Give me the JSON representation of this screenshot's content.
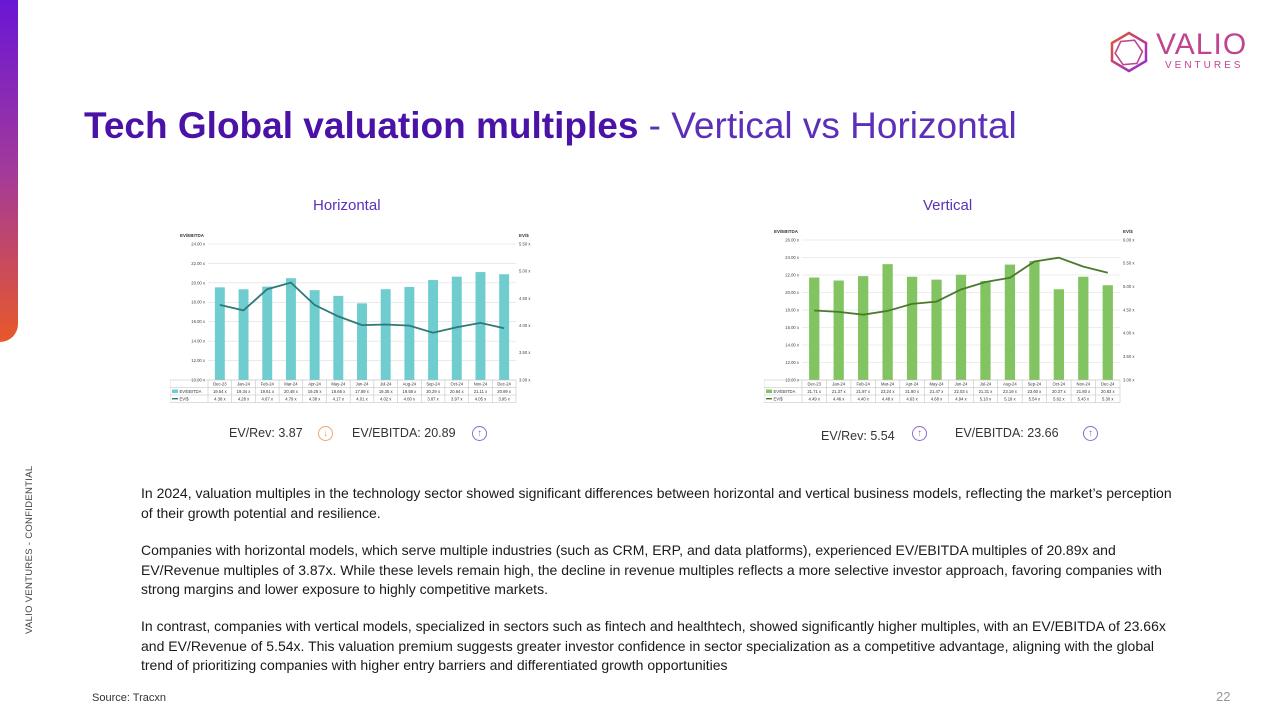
{
  "sidebar": {
    "label": "VALIO VENTURES - CONFIDENTIAL",
    "gradient": [
      "#6a16d6",
      "#e8582a"
    ]
  },
  "logo": {
    "word": "VALIO",
    "sub": "VENTURES",
    "color": "#c2448f"
  },
  "title": {
    "bold": "Tech Global valuation multiples",
    "rest": " - Vertical vs Horizontal"
  },
  "charts": {
    "horizontal": {
      "heading": "Horizontal",
      "metric1": "EV/Rev: 3.87",
      "metric1_trend": "down",
      "metric2": "EV/EBITDA: 20.89",
      "metric2_trend": "up"
    },
    "vertical": {
      "heading": "Vertical",
      "metric1": "EV/Rev: 5.54",
      "metric1_trend": "up",
      "metric2": "EV/EBITDA: 23.66",
      "metric2_trend": "up"
    }
  },
  "chart_data": [
    {
      "type": "bar",
      "name": "Horizontal",
      "categories": [
        "Dec-23",
        "Jan-24",
        "Feb-24",
        "Mar-24",
        "Apr-24",
        "May-24",
        "Jun-24",
        "Jul-24",
        "Aug-24",
        "Sep-24",
        "Oct-24",
        "Nov-24",
        "Dec-24"
      ],
      "ylabel": "EV/EBITDA",
      "y2label": "EV/$",
      "ylim": [
        10,
        24
      ],
      "y2lim": [
        3,
        5.5
      ],
      "yticks": [
        "24.00 x",
        "22.00 x",
        "20.00 x",
        "18.00 x",
        "16.00 x",
        "14.00 x",
        "12.00 x",
        "10.00 x"
      ],
      "y2ticks": [
        "5.50 x",
        "5.00 x",
        "4.50 x",
        "4.00 x",
        "3.50 x",
        "3.00 x"
      ],
      "bar_color": "#6fcdd0",
      "line_color": "#2e7a78",
      "series": [
        {
          "name": "EV/EBITDA",
          "kind": "bar",
          "values": [
            19.54,
            19.34,
            19.61,
            20.48,
            19.25,
            18.66,
            17.89,
            19.35,
            19.58,
            20.29,
            20.64,
            21.11,
            20.89
          ],
          "labels": [
            "19.54 x",
            "19.34 x",
            "19.61 x",
            "20.48 x",
            "19.25 x",
            "18.66 x",
            "17.89 x",
            "19.35 x",
            "19.58 x",
            "20.29 x",
            "20.64 x",
            "21.11 x",
            "20.89 x"
          ]
        },
        {
          "name": "EV/$",
          "kind": "line",
          "values": [
            4.38,
            4.28,
            4.67,
            4.79,
            4.38,
            4.17,
            4.01,
            4.02,
            4.0,
            3.87,
            3.97,
            4.05,
            3.95
          ],
          "labels": [
            "4.38 x",
            "4.28 x",
            "4.67 x",
            "4.79 x",
            "4.38 x",
            "4.17 x",
            "4.01 x",
            "4.02 x",
            "4.00 x",
            "3.87 x",
            "3.97 x",
            "4.05 x",
            "3.95 x"
          ]
        }
      ]
    },
    {
      "type": "bar",
      "name": "Vertical",
      "categories": [
        "Dec-23",
        "Jan-24",
        "Feb-24",
        "Mar-24",
        "Apr-24",
        "May-24",
        "Jun-24",
        "Jul-24",
        "Aug-24",
        "Sep-24",
        "Oct-24",
        "Nov-24",
        "Dec-24"
      ],
      "ylabel": "EV/EBITDA",
      "y2label": "EV/$",
      "ylim": [
        10,
        26
      ],
      "y2lim": [
        3,
        6
      ],
      "yticks": [
        "26.00 x",
        "24.00 x",
        "22.00 x",
        "20.00 x",
        "18.00 x",
        "16.00 x",
        "14.00 x",
        "12.00 x",
        "10.00 x"
      ],
      "y2ticks": [
        "6.00 x",
        "5.50 x",
        "5.00 x",
        "4.50 x",
        "4.00 x",
        "3.50 x",
        "3.00 x"
      ],
      "bar_color": "#82c461",
      "line_color": "#4a7a2c",
      "series": [
        {
          "name": "EV/EBITDA",
          "kind": "bar",
          "values": [
            21.71,
            21.37,
            21.87,
            23.24,
            21.8,
            21.47,
            22.03,
            21.31,
            23.19,
            23.6,
            20.37,
            21.8,
            20.83
          ],
          "labels": [
            "21.71 x",
            "21.37 x",
            "21.87 x",
            "23.24 x",
            "21.80 x",
            "21.47 x",
            "22.03 x",
            "21.31 x",
            "23.19 x",
            "23.60 x",
            "20.37 x",
            "21.80 x",
            "20.83 x"
          ]
        },
        {
          "name": "EV/$",
          "kind": "line",
          "values": [
            4.49,
            4.46,
            4.4,
            4.48,
            4.63,
            4.68,
            4.94,
            5.1,
            5.19,
            5.54,
            5.62,
            5.43,
            5.3
          ],
          "labels": [
            "4.49 x",
            "4.46 x",
            "4.40 x",
            "4.48 x",
            "4.63 x",
            "4.68 x",
            "4.94 x",
            "5.10 x",
            "5.19 x",
            "5.54 x",
            "5.62 x",
            "5.43 x",
            "5.30 x"
          ]
        }
      ]
    }
  ],
  "paragraphs": [
    "In 2024, valuation multiples in the technology sector showed significant differences between horizontal and vertical business models, reflecting the market’s perception of their growth potential and resilience.",
    "Companies with horizontal models, which serve multiple industries (such as CRM, ERP, and data platforms), experienced EV/EBITDA multiples of 20.89x and EV/Revenue multiples of 3.87x. While these levels remain high, the decline in revenue multiples reflects a more selective investor approach, favoring companies with strong margins and lower exposure to highly competitive markets.",
    "In contrast, companies with vertical models, specialized in sectors such as fintech and healthtech, showed significantly higher multiples, with an EV/EBITDA of 23.66x and EV/Revenue of 5.54x. This valuation premium suggests greater investor confidence in sector specialization as a competitive advantage, aligning with the global trend of prioritizing companies with higher entry barriers and differentiated growth opportunities"
  ],
  "footer": {
    "source": "Source: Tracxn",
    "page": "22"
  }
}
